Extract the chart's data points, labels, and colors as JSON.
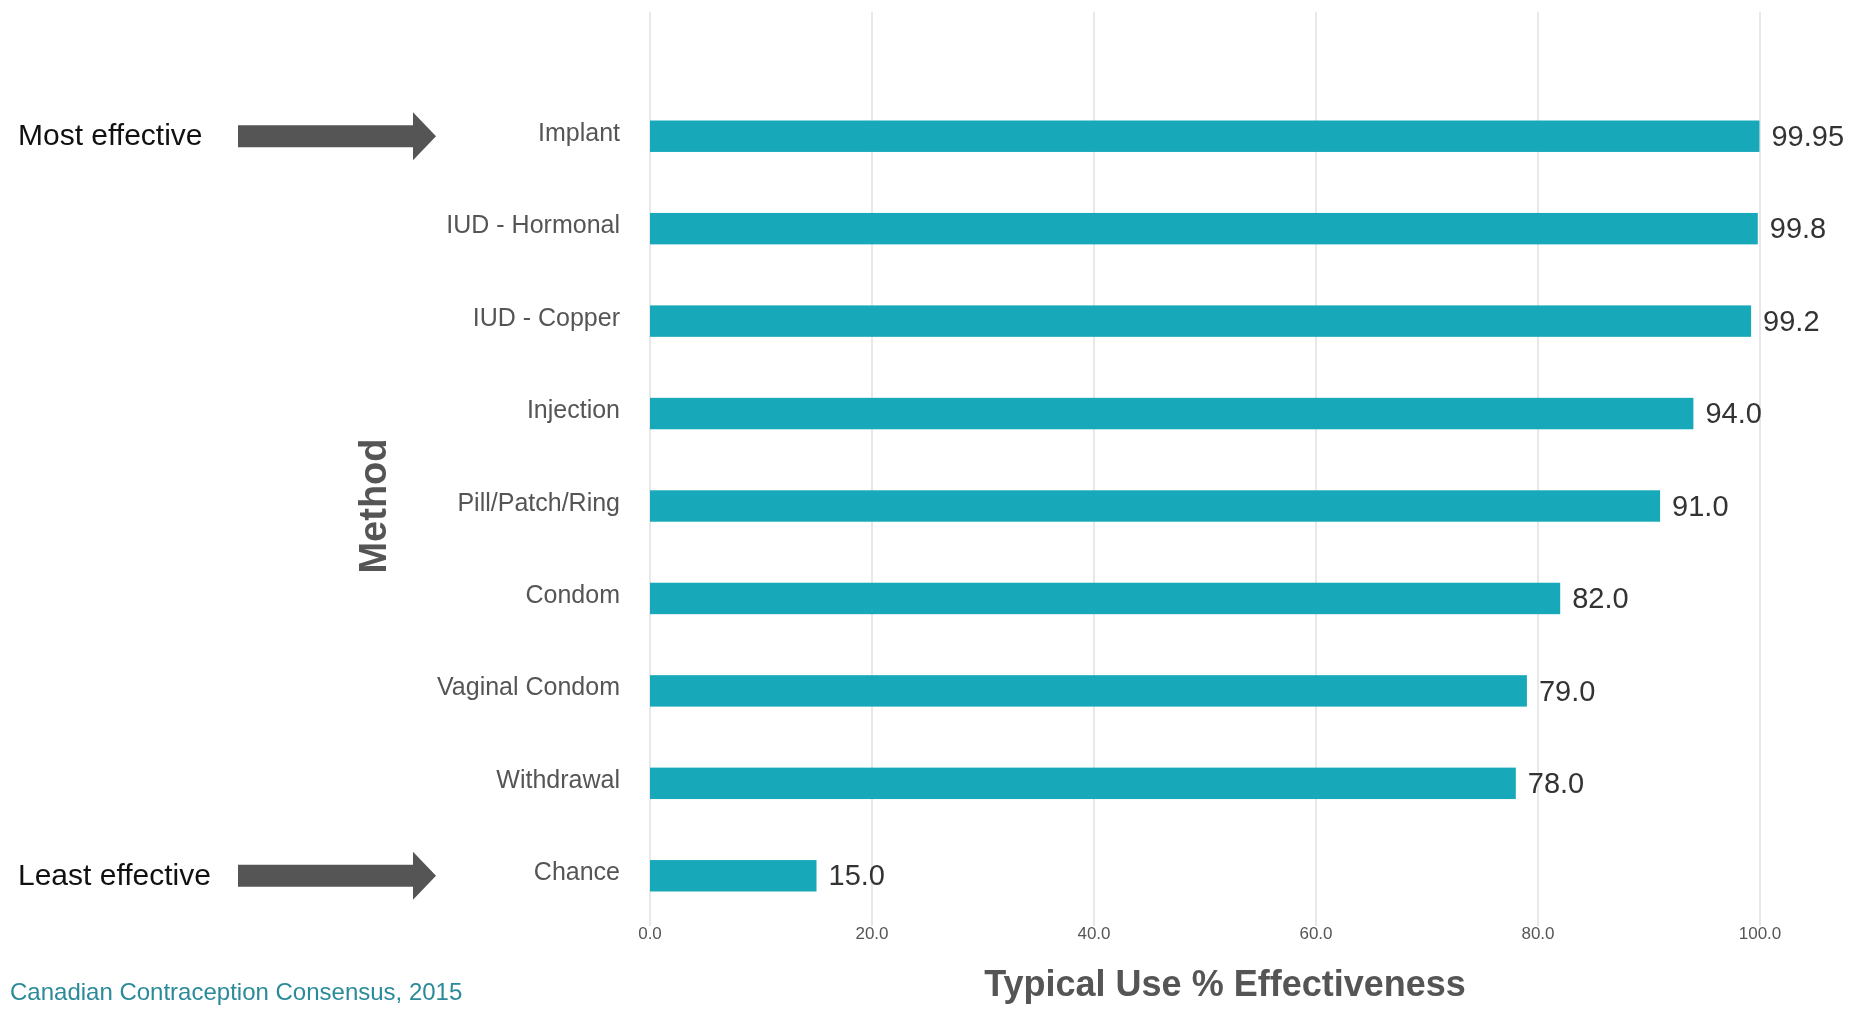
{
  "chart_data": {
    "type": "bar",
    "orientation": "horizontal",
    "ylabel": "Method",
    "xlabel": "Typical Use % Effectiveness",
    "categories": [
      "Implant",
      "IUD - Hormonal",
      "IUD - Copper",
      "Injection",
      "Pill/Patch/Ring",
      "Condom",
      "Vaginal Condom",
      "Withdrawal",
      "Chance"
    ],
    "values": [
      99.95,
      99.8,
      99.2,
      94.0,
      91.0,
      82.0,
      79.0,
      78.0,
      15.0
    ],
    "value_labels": [
      "99.95",
      "99.8",
      "99.2",
      "94.0",
      "91.0",
      "82.0",
      "79.0",
      "78.0",
      "15.0"
    ],
    "color": "#17a9b9",
    "xlim": [
      0,
      100
    ],
    "xticks": [
      {
        "value": 0,
        "label": "0.0"
      },
      {
        "value": 20,
        "label": "20.0"
      },
      {
        "value": 40,
        "label": "40.0"
      },
      {
        "value": 60,
        "label": "60.0"
      },
      {
        "value": 80,
        "label": "80.0"
      },
      {
        "value": 100,
        "label": "100.0"
      }
    ],
    "grid": "x",
    "annotations": [
      "Most effective",
      "Least effective",
      "Canadian Contraception Consensus, 2015"
    ]
  }
}
